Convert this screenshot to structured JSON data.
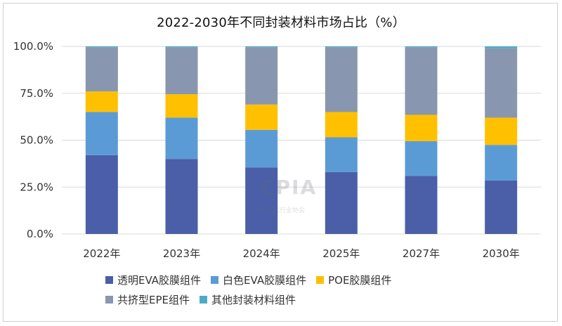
{
  "chart_data": {
    "type": "bar",
    "stacked": true,
    "title": "2022-2030年不同封装材料市场占比（%）",
    "categories": [
      "2022年",
      "2023年",
      "2024年",
      "2025年",
      "2027年",
      "2030年"
    ],
    "ylim": [
      0,
      100
    ],
    "yticks": [
      "0.0%",
      "25.0%",
      "50.0%",
      "75.0%",
      "100.0%"
    ],
    "grid": true,
    "legend_position": "bottom",
    "series": [
      {
        "name": "透明EVA胶膜组件",
        "color": "#4a5fa8",
        "values": [
          42,
          40,
          35.5,
          33,
          31,
          28.5
        ]
      },
      {
        "name": "白色EVA胶膜组件",
        "color": "#5b9bd5",
        "values": [
          23,
          22,
          20,
          18.5,
          18.5,
          19
        ]
      },
      {
        "name": "POE胶膜组件",
        "color": "#ffc000",
        "values": [
          11,
          12.5,
          13.5,
          13.5,
          14,
          14.5
        ]
      },
      {
        "name": "共挤型EPE组件",
        "color": "#8896b0",
        "values": [
          23.5,
          25,
          30.5,
          34.5,
          36,
          37
        ]
      },
      {
        "name": "其他封装材料组件",
        "color": "#4bacc6",
        "values": [
          0.5,
          0.5,
          0.5,
          0.5,
          0.5,
          1
        ]
      }
    ]
  },
  "watermark": {
    "logo_text": "CPIA",
    "org_text": "中国光伏行业协会"
  }
}
